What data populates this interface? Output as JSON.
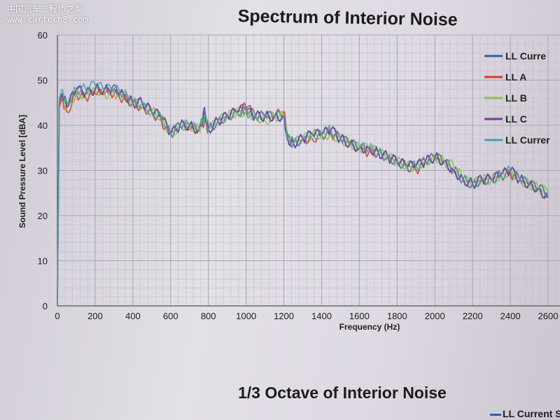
{
  "watermark": {
    "brand": "中国汽车工程师之家",
    "site": "www.cartech8.com"
  },
  "chart_data": {
    "type": "line",
    "title": "Spectrum of Interior Noise",
    "xlabel": "Frequency (Hz)",
    "ylabel": "Sound Pressure Level [dBA]",
    "xlim": [
      0,
      2600
    ],
    "ylim": [
      0,
      60
    ],
    "xticks": [
      0,
      200,
      400,
      600,
      800,
      1000,
      1200,
      1400,
      1600,
      1800,
      2000,
      2200,
      2400,
      2600
    ],
    "yticks": [
      0,
      10,
      20,
      30,
      40,
      50,
      60
    ],
    "grid": true,
    "legend_position": "top-right",
    "x": [
      0,
      10,
      25,
      50,
      100,
      150,
      200,
      250,
      300,
      350,
      400,
      450,
      500,
      550,
      600,
      650,
      700,
      750,
      780,
      800,
      850,
      900,
      950,
      1000,
      1050,
      1100,
      1150,
      1200,
      1220,
      1250,
      1300,
      1350,
      1400,
      1450,
      1500,
      1550,
      1600,
      1650,
      1700,
      1750,
      1800,
      1850,
      1900,
      1950,
      2000,
      2050,
      2100,
      2150,
      2200,
      2250,
      2300,
      2350,
      2400,
      2450,
      2500,
      2550,
      2600
    ],
    "series": [
      {
        "name": "LL Curre",
        "color": "#2f5da8",
        "values": [
          0,
          45,
          47,
          44,
          48,
          47,
          48,
          48,
          48,
          47,
          45,
          45,
          43,
          42,
          38,
          40,
          40,
          39,
          44,
          39,
          41,
          42,
          43,
          43,
          42,
          42,
          42,
          42,
          37,
          36,
          37,
          38,
          38,
          39,
          37,
          36,
          35,
          35,
          34,
          33,
          32,
          31,
          31,
          32,
          33,
          32,
          30,
          28,
          27,
          28,
          28,
          29,
          30,
          28,
          27,
          26,
          24
        ]
      },
      {
        "name": "LL A",
        "color": "#d93a2f",
        "values": [
          0,
          44,
          46,
          43,
          47,
          46,
          47,
          47,
          47,
          46,
          45,
          44,
          43,
          41,
          38,
          40,
          39,
          39,
          41,
          39,
          41,
          42,
          43,
          44,
          42,
          42,
          42,
          43,
          37,
          36,
          37,
          37,
          38,
          38,
          37,
          36,
          35,
          34,
          34,
          33,
          32,
          31,
          30,
          32,
          33,
          32,
          30,
          28,
          27,
          28,
          28,
          29,
          29,
          28,
          27,
          26,
          25
        ]
      },
      {
        "name": "LL B",
        "color": "#8fc23b",
        "values": [
          0,
          45,
          46,
          44,
          47,
          47,
          48,
          47,
          47,
          46,
          45,
          44,
          43,
          42,
          38,
          40,
          40,
          39,
          42,
          39,
          41,
          42,
          43,
          43,
          42,
          41,
          42,
          42,
          37,
          36,
          37,
          38,
          38,
          38,
          37,
          36,
          35,
          35,
          34,
          33,
          32,
          31,
          31,
          32,
          33,
          32,
          31,
          28,
          27,
          28,
          28,
          29,
          30,
          28,
          27,
          26,
          25
        ]
      },
      {
        "name": "LL C",
        "color": "#7a3d9a",
        "values": [
          0,
          45,
          47,
          44,
          48,
          47,
          48,
          48,
          49,
          47,
          45,
          45,
          43,
          42,
          38,
          40,
          40,
          39,
          43,
          39,
          41,
          42,
          43,
          44,
          42,
          42,
          42,
          42,
          37,
          36,
          37,
          38,
          38,
          39,
          37,
          36,
          35,
          35,
          34,
          33,
          32,
          31,
          31,
          32,
          33,
          32,
          30,
          28,
          27,
          28,
          28,
          29,
          30,
          28,
          27,
          26,
          24
        ]
      },
      {
        "name": "LL Currer",
        "color": "#3ba3b5",
        "values": [
          0,
          46,
          48,
          45,
          48,
          48,
          49,
          48,
          48,
          47,
          45,
          45,
          43,
          42,
          38,
          40,
          40,
          39,
          42,
          39,
          41,
          42,
          43,
          43,
          42,
          42,
          42,
          42,
          37,
          36,
          37,
          38,
          38,
          39,
          37,
          36,
          35,
          35,
          34,
          33,
          32,
          31,
          31,
          32,
          33,
          32,
          30,
          28,
          27,
          28,
          28,
          29,
          30,
          28,
          27,
          26,
          25
        ]
      }
    ]
  },
  "second_chart": {
    "title": "1/3 Octave of Interior Noise",
    "legend_label": "LL Current Sp"
  }
}
